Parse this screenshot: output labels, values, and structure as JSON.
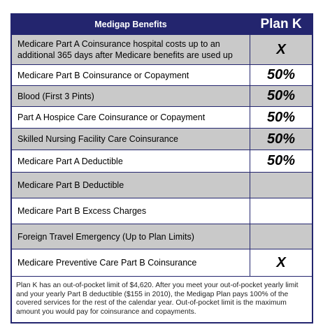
{
  "header": {
    "title": "Medigap Benefits",
    "plan": "Plan K"
  },
  "table": {
    "rows": [
      {
        "benefit": "Medicare Part A Coinsurance hospital costs up to an additional 365 days after Medicare benefits are used up",
        "plan_k": "X"
      },
      {
        "benefit": "Medicare Part B Coinsurance or Copayment",
        "plan_k": "50%"
      },
      {
        "benefit": "Blood (First 3 Pints)",
        "plan_k": "50%"
      },
      {
        "benefit": "Part A Hospice Care Coinsurance or Copayment",
        "plan_k": "50%"
      },
      {
        "benefit": "Skilled Nursing Facility Care Coinsurance",
        "plan_k": "50%"
      },
      {
        "benefit": "Medicare Part A Deductible",
        "plan_k": "50%"
      },
      {
        "benefit": "Medicare Part B Deductible"
      },
      {
        "benefit": "Medicare Part B Excess Charges"
      },
      {
        "benefit": "Foreign Travel Emergency (Up to Plan Limits)"
      },
      {
        "benefit": "Medicare Preventive Care Part B Coinsurance",
        "plan_k": "X"
      }
    ]
  },
  "footnote": "Plan K has an out-of-pocket limit of $4,620. After you meet your out-of-pocket yearly limit and your yearly Part B deductible ($155 in 2010), the Medigap Plan pays 100% of the covered services for the rest of the calendar year. Out-of-pocket limit is the maximum amount you would pay for coinsurance and copayments."
}
